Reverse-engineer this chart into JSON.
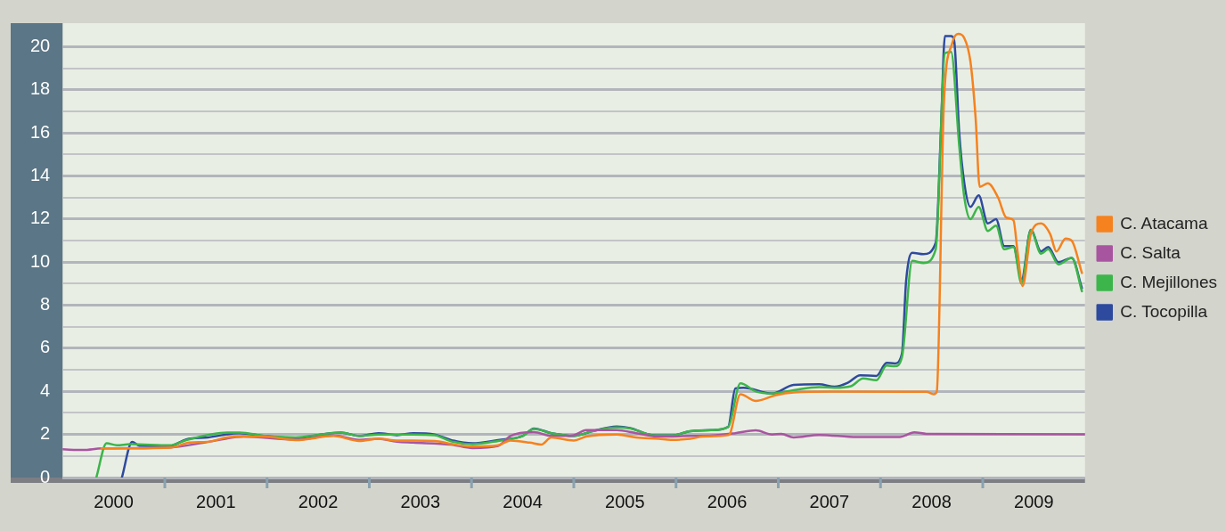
{
  "chart_data": {
    "type": "line",
    "xlim": [
      1999.5,
      2009.5
    ],
    "ylim": [
      0,
      21.1
    ],
    "xticks": [
      2000,
      {
        "value": 2000.5,
        "label": null
      },
      2001,
      {
        "value": 2001.5,
        "label": null
      },
      2002,
      {
        "value": 2002.5,
        "label": null
      },
      2003,
      {
        "value": 2003.5,
        "label": null
      },
      2004,
      {
        "value": 2004.5,
        "label": null
      },
      2005,
      {
        "value": 2005.5,
        "label": null
      },
      2006,
      {
        "value": 2006.5,
        "label": null
      },
      2007,
      {
        "value": 2007.5,
        "label": null
      },
      2008,
      {
        "value": 2008.5,
        "label": null
      },
      2009
    ],
    "yticks": [
      0,
      {
        "value": 1,
        "label": null
      },
      2,
      {
        "value": 3,
        "label": null
      },
      4,
      {
        "value": 5,
        "label": null
      },
      6,
      {
        "value": 7,
        "label": null
      },
      8,
      {
        "value": 9,
        "label": null
      },
      10,
      {
        "value": 11,
        "label": null
      },
      12,
      {
        "value": 13,
        "label": null
      },
      14,
      {
        "value": 15,
        "label": null
      },
      16,
      {
        "value": 17,
        "label": null
      },
      18,
      {
        "value": 19,
        "label": null
      },
      20
    ],
    "grid": "y",
    "legend": "right",
    "marker": "none",
    "line_style": "solid",
    "series": [
      {
        "name": "C. Atacama",
        "color": "#f5821f",
        "x": [
          1999.88,
          2000.55,
          2000.74,
          2000.92,
          2001.11,
          2001.27,
          2001.48,
          2001.78,
          2002.15,
          2002.4,
          2002.59,
          2002.77,
          2003.14,
          2003.3,
          2003.51,
          2003.76,
          2003.88,
          2004.07,
          2004.18,
          2004.28,
          2004.5,
          2004.62,
          2004.92,
          2005.11,
          2005.33,
          2005.45,
          2005.64,
          2005.76,
          2006.01,
          2006.03,
          2006.13,
          2006.28,
          2006.47,
          2006.65,
          2007.02,
          2007.95,
          2008.02,
          2008.05,
          2008.12,
          2008.2,
          2008.26,
          2008.32,
          2008.38,
          2008.43,
          2008.47,
          2008.55,
          2008.65,
          2008.73,
          2008.8,
          2008.84,
          2008.89,
          2008.97,
          2009.07,
          2009.16,
          2009.22,
          2009.31,
          2009.37,
          2009.47
        ],
        "values": [
          1.35,
          1.39,
          1.62,
          1.66,
          1.86,
          1.9,
          1.9,
          1.74,
          1.93,
          1.7,
          1.8,
          1.72,
          1.7,
          1.56,
          1.44,
          1.5,
          1.72,
          1.62,
          1.53,
          1.86,
          1.72,
          1.9,
          2.0,
          1.86,
          1.8,
          1.75,
          1.8,
          1.9,
          1.97,
          2.05,
          3.87,
          3.56,
          3.82,
          3.95,
          3.99,
          3.98,
          3.87,
          3.98,
          17.4,
          20.15,
          20.6,
          20.4,
          19.3,
          16.7,
          13.5,
          13.66,
          13.0,
          12.07,
          11.95,
          10.5,
          8.9,
          11.3,
          11.8,
          11.3,
          10.5,
          11.1,
          11.0,
          9.5
        ]
      },
      {
        "name": "C. Salta",
        "color": "#a855a0",
        "x": [
          1999.5,
          1999.7,
          1999.88,
          2000.55,
          2000.92,
          2001.27,
          2001.78,
          2002.15,
          2002.4,
          2002.59,
          2002.77,
          2002.93,
          2003.3,
          2003.51,
          2003.76,
          2003.88,
          2004.11,
          2004.28,
          2004.5,
          2004.62,
          2004.92,
          2005.11,
          2005.33,
          2005.64,
          2005.85,
          2006.08,
          2006.28,
          2006.44,
          2006.53,
          2006.65,
          2006.9,
          2007.27,
          2007.69,
          2007.83,
          2007.95,
          2009.5
        ],
        "values": [
          1.31,
          1.28,
          1.35,
          1.4,
          1.65,
          1.9,
          1.76,
          1.95,
          1.75,
          1.8,
          1.66,
          1.62,
          1.53,
          1.37,
          1.47,
          1.93,
          2.11,
          1.93,
          1.97,
          2.2,
          2.2,
          2.06,
          1.9,
          1.93,
          1.95,
          2.06,
          2.19,
          2.0,
          2.03,
          1.86,
          1.98,
          1.88,
          1.88,
          2.1,
          2.03,
          2.01
        ]
      },
      {
        "name": "C. Mejillones",
        "color": "#3cb54a",
        "x": [
          1999.83,
          1999.93,
          2000.03,
          2000.16,
          2000.55,
          2000.71,
          2001.11,
          2001.23,
          2001.48,
          2001.78,
          2002.03,
          2002.22,
          2002.4,
          2002.59,
          2002.93,
          2003.14,
          2003.3,
          2003.51,
          2003.76,
          2004.0,
          2004.11,
          2004.28,
          2004.5,
          2004.68,
          2004.92,
          2005.05,
          2005.27,
          2005.45,
          2005.64,
          2005.85,
          2006.01,
          2006.13,
          2006.28,
          2006.44,
          2006.65,
          2006.9,
          2007.05,
          2007.21,
          2007.33,
          2007.46,
          2007.56,
          2007.64,
          2007.71,
          2007.81,
          2007.92,
          2008.04,
          2008.13,
          2008.19,
          2008.27,
          2008.32,
          2008.38,
          2008.46,
          2008.55,
          2008.63,
          2008.71,
          2008.8,
          2008.88,
          2008.97,
          2009.07,
          2009.14,
          2009.24,
          2009.37,
          2009.47
        ],
        "values": [
          0,
          1.59,
          1.5,
          1.55,
          1.5,
          1.74,
          2.09,
          2.09,
          1.93,
          1.86,
          2.0,
          2.09,
          1.93,
          2.0,
          2.0,
          1.97,
          1.68,
          1.55,
          1.7,
          1.93,
          2.25,
          2.06,
          1.93,
          2.15,
          2.33,
          2.28,
          1.97,
          1.95,
          2.15,
          2.2,
          2.35,
          4.37,
          4.0,
          3.9,
          4.06,
          4.2,
          4.17,
          4.24,
          4.6,
          4.52,
          5.2,
          5.17,
          5.6,
          10.06,
          9.96,
          10.6,
          19.7,
          19.77,
          15.4,
          13.0,
          12.0,
          12.57,
          11.45,
          11.7,
          10.6,
          10.7,
          9.0,
          11.5,
          10.4,
          10.6,
          9.9,
          10.2,
          8.65
        ]
      },
      {
        "name": "C. Tocopilla",
        "color": "#2e4a9e",
        "x": [
          2000.08,
          2000.18,
          2000.25,
          2000.55,
          2000.71,
          2000.92,
          2001.23,
          2001.48,
          2001.78,
          2002.03,
          2002.22,
          2002.4,
          2002.59,
          2002.77,
          2002.93,
          2003.14,
          2003.3,
          2003.51,
          2003.76,
          2004.0,
          2004.11,
          2004.28,
          2004.5,
          2004.68,
          2004.92,
          2005.05,
          2005.27,
          2005.45,
          2005.64,
          2005.85,
          2006.01,
          2006.08,
          2006.16,
          2006.44,
          2006.65,
          2006.9,
          2007.05,
          2007.18,
          2007.3,
          2007.46,
          2007.56,
          2007.64,
          2007.71,
          2007.75,
          2007.81,
          2007.92,
          2008.04,
          2008.09,
          2008.13,
          2008.19,
          2008.22,
          2008.27,
          2008.32,
          2008.38,
          2008.46,
          2008.55,
          2008.63,
          2008.71,
          2008.8,
          2008.88,
          2008.97,
          2009.07,
          2009.14,
          2009.24,
          2009.37,
          2009.47
        ],
        "values": [
          0,
          1.66,
          1.48,
          1.47,
          1.77,
          1.86,
          2.06,
          1.93,
          1.83,
          2.0,
          2.09,
          1.93,
          2.06,
          1.97,
          2.06,
          2.0,
          1.74,
          1.59,
          1.74,
          1.93,
          2.28,
          2.06,
          1.93,
          2.15,
          2.37,
          2.3,
          1.97,
          1.95,
          2.15,
          2.2,
          2.35,
          4.14,
          4.17,
          3.9,
          4.3,
          4.33,
          4.22,
          4.4,
          4.75,
          4.72,
          5.33,
          5.3,
          5.76,
          9.1,
          10.44,
          10.37,
          10.9,
          16.0,
          20.5,
          20.5,
          20.3,
          16.0,
          13.66,
          12.57,
          13.1,
          11.8,
          12.0,
          10.75,
          10.75,
          9.2,
          11.5,
          10.5,
          10.7,
          10.0,
          10.2,
          8.8
        ]
      }
    ]
  }
}
